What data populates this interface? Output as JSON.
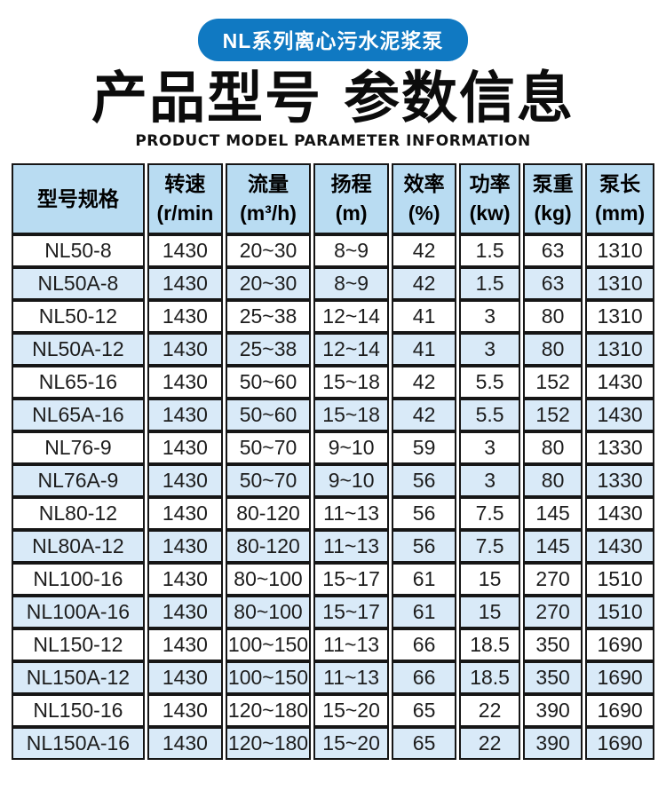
{
  "badge": {
    "label": "NL系列离心污水泥浆泵"
  },
  "title": "产品型号 参数信息",
  "subtitle": "PRODUCT MODEL PARAMETER INFORMATION",
  "colors": {
    "badge_bg": "#1079c2",
    "header_bg": "#b9dcf2",
    "row_alt_bg": "#d9eaf8",
    "border": "#161616"
  },
  "table": {
    "columns": [
      {
        "line1": "型号规格",
        "line2": ""
      },
      {
        "line1": "转速",
        "line2": "(r/min"
      },
      {
        "line1": "流量",
        "line2": "(m³/h)"
      },
      {
        "line1": "扬程",
        "line2": "(m)"
      },
      {
        "line1": "效率",
        "line2": "(%)"
      },
      {
        "line1": "功率",
        "line2": "(kw)"
      },
      {
        "line1": "泵重",
        "line2": "(kg)"
      },
      {
        "line1": "泵长",
        "line2": "(mm)"
      }
    ],
    "rows": [
      [
        "NL50-8",
        "1430",
        "20~30",
        "8~9",
        "42",
        "1.5",
        "63",
        "1310"
      ],
      [
        "NL50A-8",
        "1430",
        "20~30",
        "8~9",
        "42",
        "1.5",
        "63",
        "1310"
      ],
      [
        "NL50-12",
        "1430",
        "25~38",
        "12~14",
        "41",
        "3",
        "80",
        "1310"
      ],
      [
        "NL50A-12",
        "1430",
        "25~38",
        "12~14",
        "41",
        "3",
        "80",
        "1310"
      ],
      [
        "NL65-16",
        "1430",
        "50~60",
        "15~18",
        "42",
        "5.5",
        "152",
        "1430"
      ],
      [
        "NL65A-16",
        "1430",
        "50~60",
        "15~18",
        "42",
        "5.5",
        "152",
        "1430"
      ],
      [
        "NL76-9",
        "1430",
        "50~70",
        "9~10",
        "59",
        "3",
        "80",
        "1330"
      ],
      [
        "NL76A-9",
        "1430",
        "50~70",
        "9~10",
        "56",
        "3",
        "80",
        "1330"
      ],
      [
        "NL80-12",
        "1430",
        "80-120",
        "11~13",
        "56",
        "7.5",
        "145",
        "1430"
      ],
      [
        "NL80A-12",
        "1430",
        "80-120",
        "11~13",
        "56",
        "7.5",
        "145",
        "1430"
      ],
      [
        "NL100-16",
        "1430",
        "80~100",
        "15~17",
        "61",
        "15",
        "270",
        "1510"
      ],
      [
        "NL100A-16",
        "1430",
        "80~100",
        "15~17",
        "61",
        "15",
        "270",
        "1510"
      ],
      [
        "NL150-12",
        "1430",
        "100~150",
        "11~13",
        "66",
        "18.5",
        "350",
        "1690"
      ],
      [
        "NL150A-12",
        "1430",
        "100~150",
        "11~13",
        "66",
        "18.5",
        "350",
        "1690"
      ],
      [
        "NL150-16",
        "1430",
        "120~180",
        "15~20",
        "65",
        "22",
        "390",
        "1690"
      ],
      [
        "NL150A-16",
        "1430",
        "120~180",
        "15~20",
        "65",
        "22",
        "390",
        "1690"
      ]
    ]
  }
}
